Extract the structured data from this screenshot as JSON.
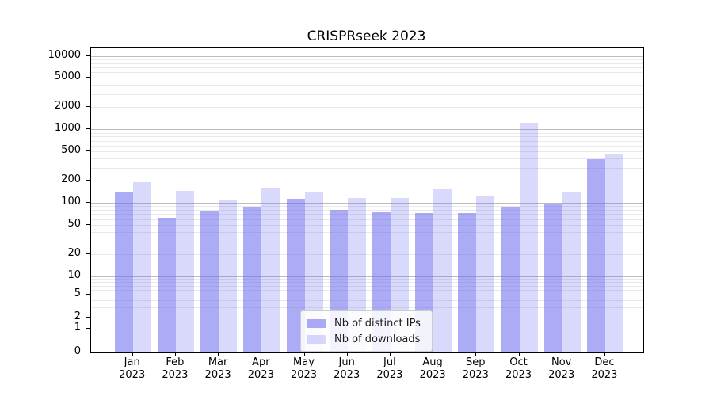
{
  "title": "CRISPRseek 2023",
  "chart_data": {
    "type": "bar",
    "title": "CRISPRseek 2023",
    "categories": [
      "Jan 2023",
      "Feb 2023",
      "Mar 2023",
      "Apr 2023",
      "May 2023",
      "Jun 2023",
      "Jul 2023",
      "Aug 2023",
      "Sep 2023",
      "Oct 2023",
      "Nov 2023",
      "Dec 2023"
    ],
    "series": [
      {
        "name": "Nb of distinct IPs",
        "color": "#6666ee",
        "alpha": 0.55,
        "values": [
          138,
          62,
          76,
          88,
          114,
          80,
          75,
          73,
          72,
          89,
          98,
          388
        ]
      },
      {
        "name": "Nb of downloads",
        "color": "#6666ee",
        "alpha": 0.25,
        "values": [
          193,
          144,
          110,
          159,
          141,
          117,
          115,
          152,
          126,
          1226,
          138,
          466
        ]
      }
    ],
    "yscale": "symlog",
    "yticks": [
      0,
      1,
      2,
      5,
      10,
      20,
      50,
      100,
      200,
      500,
      1000,
      2000,
      5000,
      10000
    ],
    "ylim": [
      0,
      10000
    ],
    "xlabel": "",
    "ylabel": "",
    "grid": true,
    "legend_position": "lower center",
    "legend_items": [
      {
        "label": "Nb of distinct IPs"
      },
      {
        "label": "Nb of downloads"
      }
    ]
  },
  "colors": {
    "bar_base": "#6666ee",
    "major_grid": "#bdbdbd",
    "minor_grid": "#e9e9e9",
    "spine": "#000000",
    "background": "#ffffff"
  }
}
